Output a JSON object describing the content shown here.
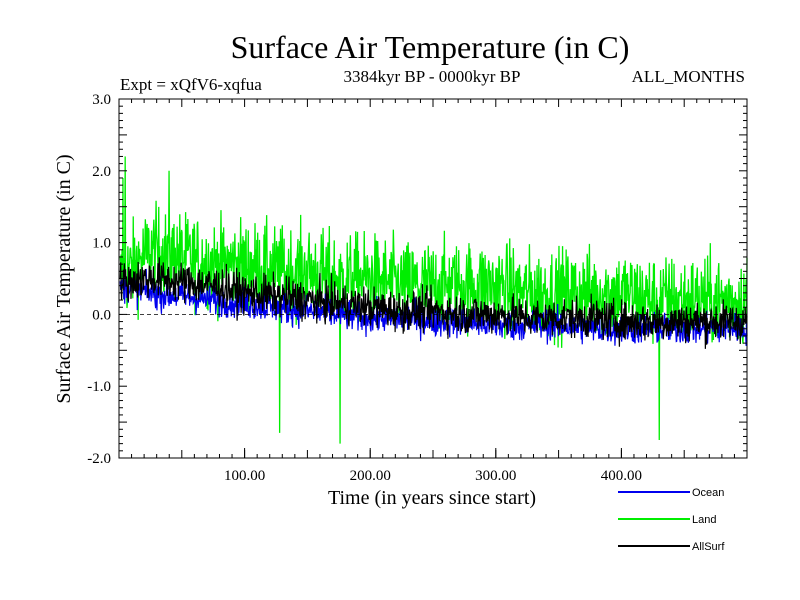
{
  "chart_data": {
    "type": "line",
    "title": "Surface Air Temperature (in C)",
    "subtitle_left": "Expt = xQfV6-xqfua",
    "subtitle_center": "3384kyr BP - 0000kyr BP",
    "subtitle_right": "ALL_MONTHS",
    "xlabel": "Time (in years since start)",
    "ylabel": "Surface Air Temperature (in C)",
    "xlim": [
      0,
      500
    ],
    "ylim": [
      -2.0,
      3.0
    ],
    "x_ticks": [
      {
        "value": 100,
        "label": "100.00"
      },
      {
        "value": 200,
        "label": "200.00"
      },
      {
        "value": 300,
        "label": "300.00"
      },
      {
        "value": 400,
        "label": "400.00"
      }
    ],
    "y_ticks": [
      {
        "value": 3.0,
        "label": "3.0"
      },
      {
        "value": 2.0,
        "label": "2.0"
      },
      {
        "value": 1.0,
        "label": "1.0"
      },
      {
        "value": 0.0,
        "label": "0.0"
      },
      {
        "value": -1.0,
        "label": "-1.0"
      },
      {
        "value": -2.0,
        "label": "-2.0"
      }
    ],
    "series": [
      {
        "name": "Land",
        "color": "#00ee00",
        "x_range": [
          1,
          500
        ],
        "values": [
          0.5,
          0.9,
          0.8,
          0.7,
          0.7,
          0.6,
          0.6,
          0.5,
          0.5,
          0.4,
          0.4,
          0.4,
          0.4,
          0.3,
          0.3,
          0.3,
          0.3,
          0.2,
          0.2,
          0.2,
          0.2
        ],
        "annotated_extremes": [
          {
            "x": 3,
            "y": 1.9
          },
          {
            "x": 5,
            "y": 2.2
          },
          {
            "x": 40,
            "y": 2.0
          },
          {
            "x": 176,
            "y": -1.8
          },
          {
            "x": 128,
            "y": -1.65
          },
          {
            "x": 430,
            "y": -1.75
          }
        ]
      },
      {
        "name": "Ocean",
        "color": "#0000ee",
        "x_range": [
          1,
          500
        ],
        "values": [
          0.4,
          0.3,
          0.25,
          0.2,
          0.15,
          0.1,
          0.05,
          0.0,
          -0.05,
          -0.05,
          -0.1,
          -0.1,
          -0.15,
          -0.15,
          -0.15,
          -0.2,
          -0.2,
          -0.2,
          -0.2,
          -0.2,
          -0.2
        ]
      },
      {
        "name": "AllSurf",
        "color": "#000000",
        "x_range": [
          1,
          500
        ],
        "values": [
          0.45,
          0.5,
          0.45,
          0.4,
          0.3,
          0.25,
          0.2,
          0.15,
          0.1,
          0.05,
          0.05,
          0.0,
          0.0,
          -0.05,
          -0.05,
          -0.05,
          -0.1,
          -0.1,
          -0.1,
          -0.1,
          -0.1
        ]
      }
    ],
    "reference_line": {
      "y": 0.0,
      "style": "dashed"
    },
    "legend": [
      {
        "label": "Ocean",
        "color": "#0000ee"
      },
      {
        "label": "Land",
        "color": "#00ee00"
      },
      {
        "label": "AllSurf",
        "color": "#000000"
      }
    ],
    "legend_position": "bottom-right"
  }
}
